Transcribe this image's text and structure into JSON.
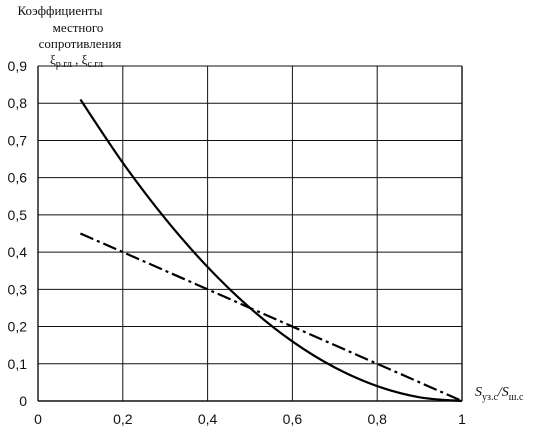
{
  "chart_data": {
    "type": "line",
    "ylabel_lines": [
      "Коэффициенты",
      "местного",
      "сопротивления"
    ],
    "ylabel_symbols": {
      "a": "ξ",
      "a_sub": "р.гл",
      "sep": " , ",
      "b": "ξ",
      "b_sub": "с.гл"
    },
    "xlabel": {
      "s1": "S",
      "s1_sub": "уз.с",
      "slash": "/",
      "s2": "S",
      "s2_sub": "ш.с"
    },
    "xlim": [
      0,
      1
    ],
    "ylim": [
      0,
      0.9
    ],
    "xticks": [
      0,
      0.2,
      0.4,
      0.6,
      0.8,
      1
    ],
    "xtick_labels": [
      "0",
      "0,2",
      "0,4",
      "0,6",
      "0,8",
      "1"
    ],
    "yticks": [
      0,
      0.1,
      0.2,
      0.3,
      0.4,
      0.5,
      0.6,
      0.7,
      0.8,
      0.9
    ],
    "ytick_labels": [
      "0",
      "0,1",
      "0,2",
      "0,3",
      "0,4",
      "0,5",
      "0,6",
      "0,7",
      "0,8",
      "0,9"
    ],
    "grid": true,
    "series": [
      {
        "style": "solid",
        "x": [
          0.1,
          0.2,
          0.3,
          0.4,
          0.5,
          0.6,
          0.7,
          0.8,
          0.9,
          1.0
        ],
        "y": [
          0.81,
          0.64,
          0.49,
          0.36,
          0.25,
          0.16,
          0.09,
          0.04,
          0.01,
          0.0
        ]
      },
      {
        "style": "dashdot",
        "x": [
          0.1,
          1.0
        ],
        "y": [
          0.45,
          0.0
        ]
      }
    ]
  }
}
